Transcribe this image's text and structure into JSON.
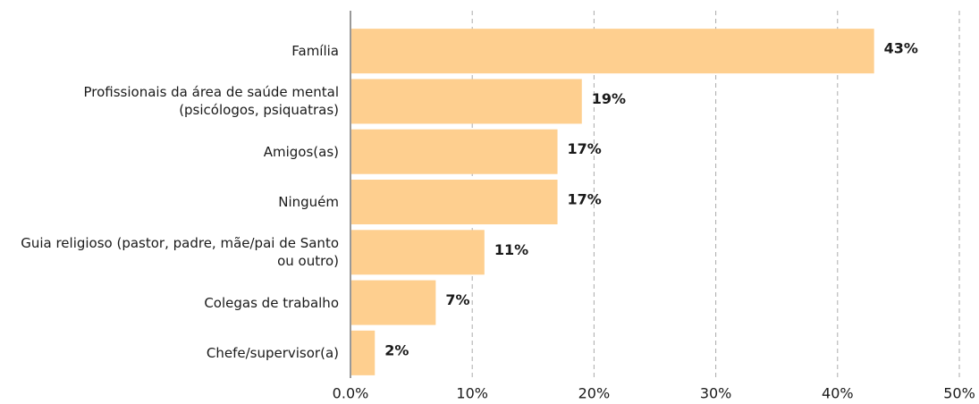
{
  "chart_data": {
    "type": "barh",
    "categories": [
      "Família",
      "Profissionais da área de saúde mental (psicólogos, psiquatras)",
      "Amigos(as)",
      "Ninguém",
      "Guia religioso (pastor, padre, mãe/pai de Santo ou outro)",
      "Colegas de trabalho",
      "Chefe/supervisor(a)"
    ],
    "values": [
      43,
      19,
      17,
      17,
      11,
      7,
      2
    ],
    "value_labels": [
      "43%",
      "19%",
      "17%",
      "17%",
      "11%",
      "7%",
      "2%"
    ],
    "color": "#fecf8f",
    "xlim": [
      0,
      50
    ],
    "xticks": [
      {
        "value": 0,
        "label": "0.0%"
      },
      {
        "value": 10,
        "label": "10%"
      },
      {
        "value": 20,
        "label": "20%"
      },
      {
        "value": 30,
        "label": "30%"
      },
      {
        "value": 40,
        "label": "40%"
      },
      {
        "value": 50,
        "label": "50%"
      }
    ],
    "grid": true
  }
}
